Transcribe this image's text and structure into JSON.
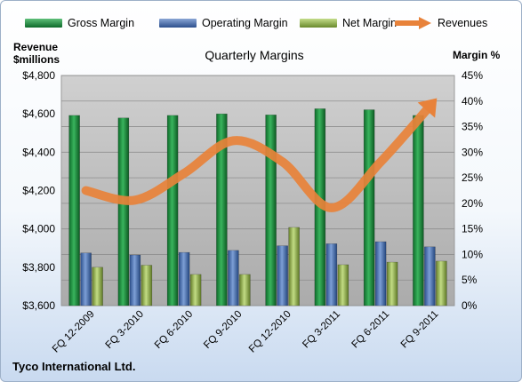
{
  "chart_data": {
    "type": "bar",
    "title": "Quarterly Margins",
    "footer": "Tyco International Ltd.",
    "categories": [
      "FQ 12-2009",
      "FQ 3-2010",
      "FQ 6-2010",
      "FQ 9-2010",
      "FQ 12-2010",
      "FQ 3-2011",
      "FQ 6-2011",
      "FQ 9-2011"
    ],
    "y_left": {
      "label_line1": "Revenue",
      "label_line2": "$millions",
      "ylim": [
        3600,
        4800
      ],
      "ticks": [
        "$3,600",
        "$3,800",
        "$4,000",
        "$4,200",
        "$4,400",
        "$4,600",
        "$4,800"
      ]
    },
    "y_right": {
      "label": "Margin %",
      "ylim": [
        0,
        45
      ],
      "ticks": [
        "0%",
        "5%",
        "10%",
        "15%",
        "20%",
        "25%",
        "30%",
        "35%",
        "40%",
        "45%"
      ]
    },
    "series": [
      {
        "name": "Gross Margin",
        "kind": "bar",
        "axis": "right",
        "color": "#1e8a3e",
        "values": [
          37.2,
          36.7,
          37.2,
          37.5,
          37.3,
          38.5,
          38.3,
          37.2
        ]
      },
      {
        "name": "Operating Margin",
        "kind": "bar",
        "axis": "right",
        "color": "#4a72b0",
        "values": [
          10.3,
          9.9,
          10.4,
          10.8,
          11.7,
          12.1,
          12.5,
          11.5
        ]
      },
      {
        "name": "Net Margin",
        "kind": "bar",
        "axis": "right",
        "color": "#8fb04a",
        "values": [
          7.5,
          7.9,
          6.1,
          6.1,
          15.3,
          8.0,
          8.5,
          8.7
        ]
      },
      {
        "name": "Revenues",
        "kind": "line",
        "axis": "left",
        "color": "#e8823a",
        "values": [
          4200,
          4150,
          4290,
          4460,
          4350,
          4110,
          4350,
          4640
        ]
      }
    ],
    "legend_position": "top",
    "grid": true
  }
}
